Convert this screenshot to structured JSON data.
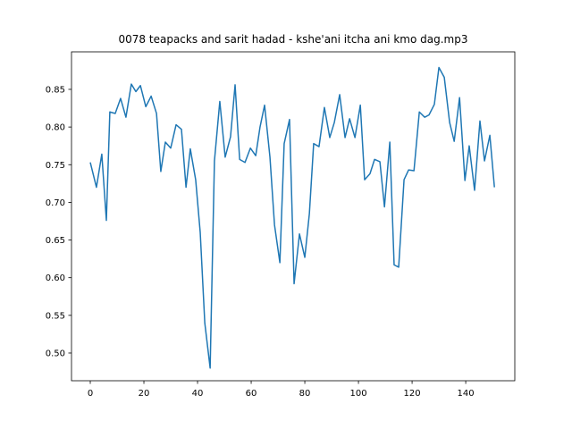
{
  "chart_data": {
    "type": "line",
    "title": "0078 teapacks and sarit hadad - kshe'ani itcha ani kmo dag.mp3",
    "x": [
      0,
      2.3,
      4.3,
      6,
      7.3,
      9.3,
      11.3,
      13.3,
      15.3,
      17,
      18.7,
      20.7,
      22.7,
      24.7,
      26.3,
      28,
      30,
      32,
      34,
      35.7,
      37.3,
      39.3,
      41,
      42.7,
      44.7,
      46.3,
      48.3,
      50.3,
      52.3,
      54,
      55.7,
      57.7,
      59.7,
      61.7,
      63.3,
      65,
      67,
      68.7,
      70.7,
      72.3,
      74.3,
      76,
      78,
      80,
      81.7,
      83.3,
      85.3,
      87.3,
      89.3,
      91,
      93,
      95,
      96.7,
      98.7,
      100.7,
      102.3,
      104.3,
      106,
      108,
      109.7,
      111.7,
      113.3,
      115,
      117,
      118.7,
      120.7,
      122.7,
      124.7,
      126.3,
      128.3,
      130,
      132,
      134,
      135.7,
      137.7,
      139.7,
      141.3,
      143.3,
      145.3,
      147,
      149,
      150.7
    ],
    "series": [
      {
        "color": "#1f77b4",
        "values": [
          0.753,
          0.72,
          0.764,
          0.676,
          0.82,
          0.818,
          0.838,
          0.813,
          0.857,
          0.847,
          0.855,
          0.827,
          0.841,
          0.818,
          0.741,
          0.78,
          0.772,
          0.803,
          0.797,
          0.72,
          0.771,
          0.73,
          0.66,
          0.54,
          0.48,
          0.755,
          0.834,
          0.76,
          0.787,
          0.856,
          0.757,
          0.753,
          0.772,
          0.762,
          0.8,
          0.829,
          0.76,
          0.67,
          0.62,
          0.778,
          0.81,
          0.592,
          0.658,
          0.627,
          0.685,
          0.778,
          0.774,
          0.826,
          0.786,
          0.806,
          0.843,
          0.786,
          0.811,
          0.786,
          0.829,
          0.73,
          0.738,
          0.757,
          0.754,
          0.694,
          0.78,
          0.617,
          0.614,
          0.73,
          0.743,
          0.742,
          0.82,
          0.813,
          0.816,
          0.83,
          0.879,
          0.866,
          0.806,
          0.781,
          0.839,
          0.729,
          0.775,
          0.716,
          0.808,
          0.755,
          0.789,
          0.72
        ]
      }
    ],
    "xlim": [
      -7,
      158.3
    ],
    "xticks": [
      0,
      20,
      40,
      60,
      80,
      100,
      120,
      140
    ],
    "ylim": [
      0.4632,
      0.8998
    ],
    "yticks": [
      {
        "value": 0.5,
        "label": "0.50"
      },
      0.55,
      {
        "value": 0.6,
        "label": "0.60"
      },
      0.65,
      {
        "value": 0.7,
        "label": "0.70"
      },
      0.75,
      {
        "value": 0.8,
        "label": "0.80"
      },
      0.85
    ],
    "grid": false
  }
}
